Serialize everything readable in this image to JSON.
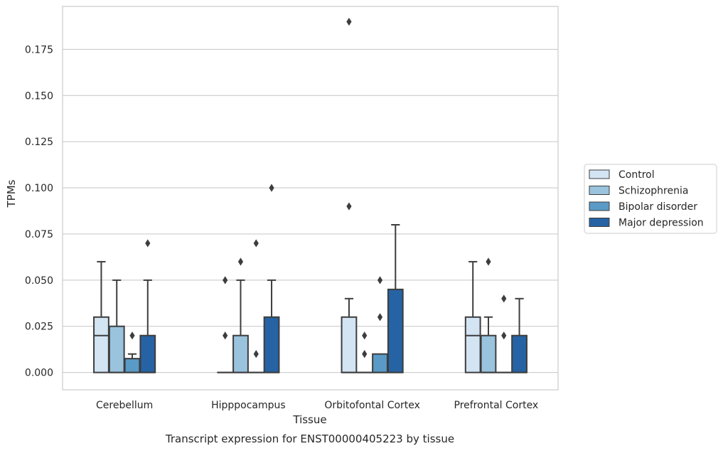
{
  "chart_data": {
    "type": "box",
    "caption": "Transcript expression for ENST00000405223 by tissue",
    "xlabel": "Tissue",
    "ylabel": "TPMs",
    "ylim": [
      -0.0094,
      0.1983
    ],
    "yticks": [
      0.0,
      0.025,
      0.05,
      0.075,
      0.1,
      0.125,
      0.15,
      0.175
    ],
    "ytick_labels": [
      "0.000",
      "0.025",
      "0.050",
      "0.075",
      "0.100",
      "0.125",
      "0.150",
      "0.175"
    ],
    "grid": "horizontal",
    "legend_position": "right",
    "categories": [
      "Cerebellum",
      "Hipppocampus",
      "Orbitofontal Cortex",
      "Prefrontal Cortex"
    ],
    "series": [
      {
        "name": "Control",
        "color": "#d3e4f3",
        "boxes": [
          {
            "q1": 0.0,
            "median": 0.02,
            "q3": 0.03,
            "whisker_low": 0.0,
            "whisker_high": 0.06,
            "outliers": []
          },
          {
            "q1": 0.0,
            "median": 0.0,
            "q3": 0.0,
            "whisker_low": 0.0,
            "whisker_high": 0.0,
            "outliers": [
              0.02,
              0.05
            ]
          },
          {
            "q1": 0.0,
            "median": 0.0,
            "q3": 0.03,
            "whisker_low": 0.0,
            "whisker_high": 0.04,
            "outliers": [
              0.09,
              0.19
            ]
          },
          {
            "q1": 0.0,
            "median": 0.02,
            "q3": 0.03,
            "whisker_low": 0.0,
            "whisker_high": 0.06,
            "outliers": []
          }
        ]
      },
      {
        "name": "Schizophrenia",
        "color": "#9ac3de",
        "boxes": [
          {
            "q1": 0.0,
            "median": 0.0,
            "q3": 0.025,
            "whisker_low": 0.0,
            "whisker_high": 0.05,
            "outliers": []
          },
          {
            "q1": 0.0,
            "median": 0.0,
            "q3": 0.02,
            "whisker_low": 0.0,
            "whisker_high": 0.05,
            "outliers": [
              0.06
            ]
          },
          {
            "q1": 0.0,
            "median": 0.0,
            "q3": 0.0,
            "whisker_low": 0.0,
            "whisker_high": 0.0,
            "outliers": [
              0.01,
              0.02
            ]
          },
          {
            "q1": 0.0,
            "median": 0.0,
            "q3": 0.02,
            "whisker_low": 0.0,
            "whisker_high": 0.03,
            "outliers": [
              0.06
            ]
          }
        ]
      },
      {
        "name": "Bipolar disorder",
        "color": "#5a9ac6",
        "boxes": [
          {
            "q1": 0.0,
            "median": 0.0,
            "q3": 0.0075,
            "whisker_low": 0.0,
            "whisker_high": 0.01,
            "outliers": [
              0.02
            ]
          },
          {
            "q1": 0.0,
            "median": 0.0,
            "q3": 0.0,
            "whisker_low": 0.0,
            "whisker_high": 0.0,
            "outliers": [
              0.01,
              0.07
            ]
          },
          {
            "q1": 0.0,
            "median": 0.0,
            "q3": 0.01,
            "whisker_low": 0.0,
            "whisker_high": 0.01,
            "outliers": [
              0.03,
              0.05
            ]
          },
          {
            "q1": 0.0,
            "median": 0.0,
            "q3": 0.0,
            "whisker_low": 0.0,
            "whisker_high": 0.0,
            "outliers": [
              0.02,
              0.04
            ]
          }
        ]
      },
      {
        "name": "Major depression",
        "color": "#2563a4",
        "boxes": [
          {
            "q1": 0.0,
            "median": 0.0,
            "q3": 0.02,
            "whisker_low": 0.0,
            "whisker_high": 0.05,
            "outliers": [
              0.07
            ]
          },
          {
            "q1": 0.0,
            "median": 0.0,
            "q3": 0.03,
            "whisker_low": 0.0,
            "whisker_high": 0.05,
            "outliers": [
              0.1
            ]
          },
          {
            "q1": 0.0,
            "median": 0.0,
            "q3": 0.045,
            "whisker_low": 0.0,
            "whisker_high": 0.08,
            "outliers": []
          },
          {
            "q1": 0.0,
            "median": 0.0,
            "q3": 0.02,
            "whisker_low": 0.0,
            "whisker_high": 0.04,
            "outliers": []
          }
        ]
      }
    ]
  }
}
